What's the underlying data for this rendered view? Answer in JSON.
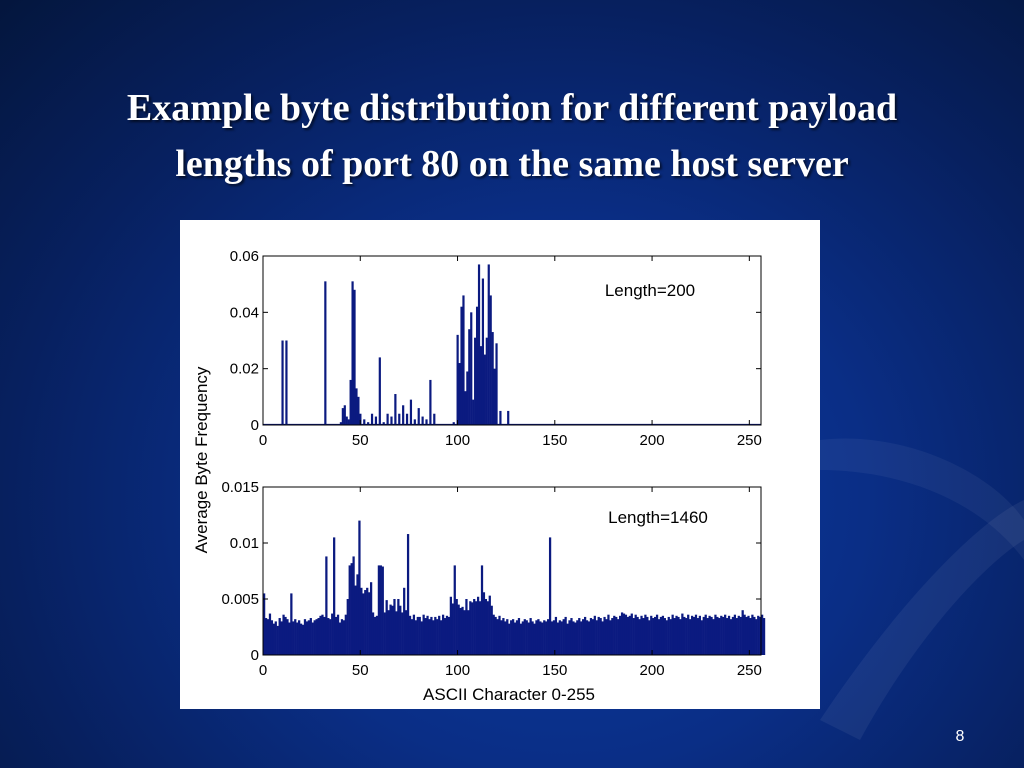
{
  "slide": {
    "title_line1": "Example byte distribution for different payload",
    "title_line2": "lengths of port 80 on the same host server",
    "page_number": "8"
  },
  "colors": {
    "bar": "#0b1a80",
    "axis": "#000000"
  },
  "chart_data": [
    {
      "type": "bar",
      "annotation": "Length=200",
      "xlabel": "",
      "ylabel": "Average Byte Frequency",
      "xlim": [
        0,
        256
      ],
      "ylim": [
        0,
        0.06
      ],
      "xticks": [
        0,
        50,
        100,
        150,
        200,
        250
      ],
      "yticks": [
        0,
        0.02,
        0.04,
        0.06
      ],
      "ytick_labels": [
        "0",
        "0.02",
        "0.04",
        "0.06"
      ],
      "x": [
        10,
        12,
        32,
        40,
        41,
        42,
        43,
        44,
        45,
        46,
        47,
        48,
        49,
        50,
        52,
        54,
        56,
        58,
        60,
        62,
        64,
        66,
        68,
        70,
        72,
        74,
        76,
        78,
        80,
        82,
        84,
        86,
        88,
        98,
        100,
        101,
        102,
        103,
        104,
        105,
        106,
        107,
        108,
        109,
        110,
        111,
        112,
        113,
        114,
        115,
        116,
        117,
        118,
        119,
        120,
        122,
        126
      ],
      "values": [
        0.03,
        0.03,
        0.051,
        0.001,
        0.006,
        0.007,
        0.003,
        0.002,
        0.016,
        0.051,
        0.048,
        0.013,
        0.01,
        0.004,
        0.002,
        0.001,
        0.004,
        0.003,
        0.024,
        0.001,
        0.004,
        0.003,
        0.011,
        0.004,
        0.007,
        0.004,
        0.009,
        0.002,
        0.006,
        0.003,
        0.002,
        0.016,
        0.004,
        0.001,
        0.032,
        0.022,
        0.042,
        0.046,
        0.012,
        0.019,
        0.034,
        0.04,
        0.009,
        0.031,
        0.042,
        0.057,
        0.028,
        0.052,
        0.025,
        0.031,
        0.057,
        0.046,
        0.033,
        0.02,
        0.029,
        0.005,
        0.005
      ]
    },
    {
      "type": "bar",
      "annotation": "Length=1460",
      "xlabel": "ASCII Character 0-255",
      "ylabel": "",
      "xlim": [
        0,
        256
      ],
      "ylim": [
        0,
        0.015
      ],
      "xticks": [
        0,
        50,
        100,
        150,
        200,
        250
      ],
      "yticks": [
        0,
        0.005,
        0.01,
        0.015
      ],
      "ytick_labels": [
        "0",
        "0.005",
        "0.01",
        "0.015"
      ],
      "values": [
        0.0055,
        0.0033,
        0.0032,
        0.0037,
        0.0031,
        0.0028,
        0.003,
        0.0026,
        0.0033,
        0.003,
        0.0036,
        0.0034,
        0.0032,
        0.0029,
        0.0055,
        0.003,
        0.0032,
        0.0029,
        0.0031,
        0.0028,
        0.0027,
        0.0032,
        0.003,
        0.0031,
        0.0033,
        0.0029,
        0.0031,
        0.0032,
        0.0033,
        0.0035,
        0.0036,
        0.0034,
        0.0088,
        0.0033,
        0.0032,
        0.0037,
        0.0105,
        0.0034,
        0.0036,
        0.0029,
        0.0032,
        0.0031,
        0.0036,
        0.005,
        0.008,
        0.0082,
        0.0088,
        0.0062,
        0.0072,
        0.012,
        0.006,
        0.0055,
        0.0058,
        0.006,
        0.0056,
        0.0065,
        0.0038,
        0.0034,
        0.0035,
        0.008,
        0.008,
        0.0079,
        0.0038,
        0.0049,
        0.004,
        0.0045,
        0.0044,
        0.005,
        0.0039,
        0.005,
        0.0044,
        0.0038,
        0.006,
        0.004,
        0.0108,
        0.0035,
        0.0032,
        0.0036,
        0.0031,
        0.0034,
        0.0034,
        0.003,
        0.0036,
        0.0033,
        0.0035,
        0.0032,
        0.0034,
        0.0031,
        0.0034,
        0.0032,
        0.0035,
        0.0031,
        0.0036,
        0.0033,
        0.0035,
        0.0034,
        0.0052,
        0.0046,
        0.008,
        0.005,
        0.0045,
        0.0042,
        0.0043,
        0.004,
        0.005,
        0.004,
        0.0048,
        0.0047,
        0.005,
        0.0048,
        0.0052,
        0.0048,
        0.008,
        0.0056,
        0.005,
        0.0048,
        0.0053,
        0.0044,
        0.0036,
        0.0034,
        0.0032,
        0.0035,
        0.0031,
        0.0033,
        0.003,
        0.0032,
        0.0028,
        0.0031,
        0.0032,
        0.0029,
        0.0031,
        0.0033,
        0.0028,
        0.003,
        0.0032,
        0.0031,
        0.0029,
        0.0033,
        0.003,
        0.0028,
        0.0031,
        0.0032,
        0.003,
        0.0029,
        0.0031,
        0.003,
        0.0032,
        0.0105,
        0.003,
        0.0031,
        0.0034,
        0.0029,
        0.0031,
        0.003,
        0.0032,
        0.0034,
        0.0028,
        0.0031,
        0.0033,
        0.003,
        0.0029,
        0.0031,
        0.0033,
        0.003,
        0.0032,
        0.0034,
        0.0031,
        0.003,
        0.0033,
        0.0032,
        0.0035,
        0.0031,
        0.0034,
        0.0033,
        0.003,
        0.0034,
        0.0032,
        0.0036,
        0.0031,
        0.0033,
        0.0035,
        0.0034,
        0.0032,
        0.0035,
        0.0038,
        0.0037,
        0.0036,
        0.0034,
        0.0035,
        0.0037,
        0.0033,
        0.0036,
        0.0034,
        0.0032,
        0.0035,
        0.0033,
        0.0036,
        0.0034,
        0.0031,
        0.0035,
        0.0033,
        0.0034,
        0.0036,
        0.0032,
        0.0034,
        0.0035,
        0.0033,
        0.0031,
        0.0034,
        0.0032,
        0.0036,
        0.0033,
        0.0035,
        0.0034,
        0.0032,
        0.0037,
        0.0034,
        0.0033,
        0.0036,
        0.0032,
        0.0035,
        0.0034,
        0.0036,
        0.0033,
        0.0035,
        0.0031,
        0.0034,
        0.0036,
        0.0033,
        0.0035,
        0.0034,
        0.0032,
        0.0036,
        0.0034,
        0.0033,
        0.0035,
        0.0034,
        0.0036,
        0.0033,
        0.0035,
        0.0032,
        0.0034,
        0.0036,
        0.0033,
        0.0035,
        0.0034,
        0.004,
        0.0036,
        0.0034,
        0.0035,
        0.0033,
        0.0036,
        0.0034,
        0.0032,
        0.0035,
        0.0034,
        0.0036,
        0.0033
      ]
    }
  ]
}
